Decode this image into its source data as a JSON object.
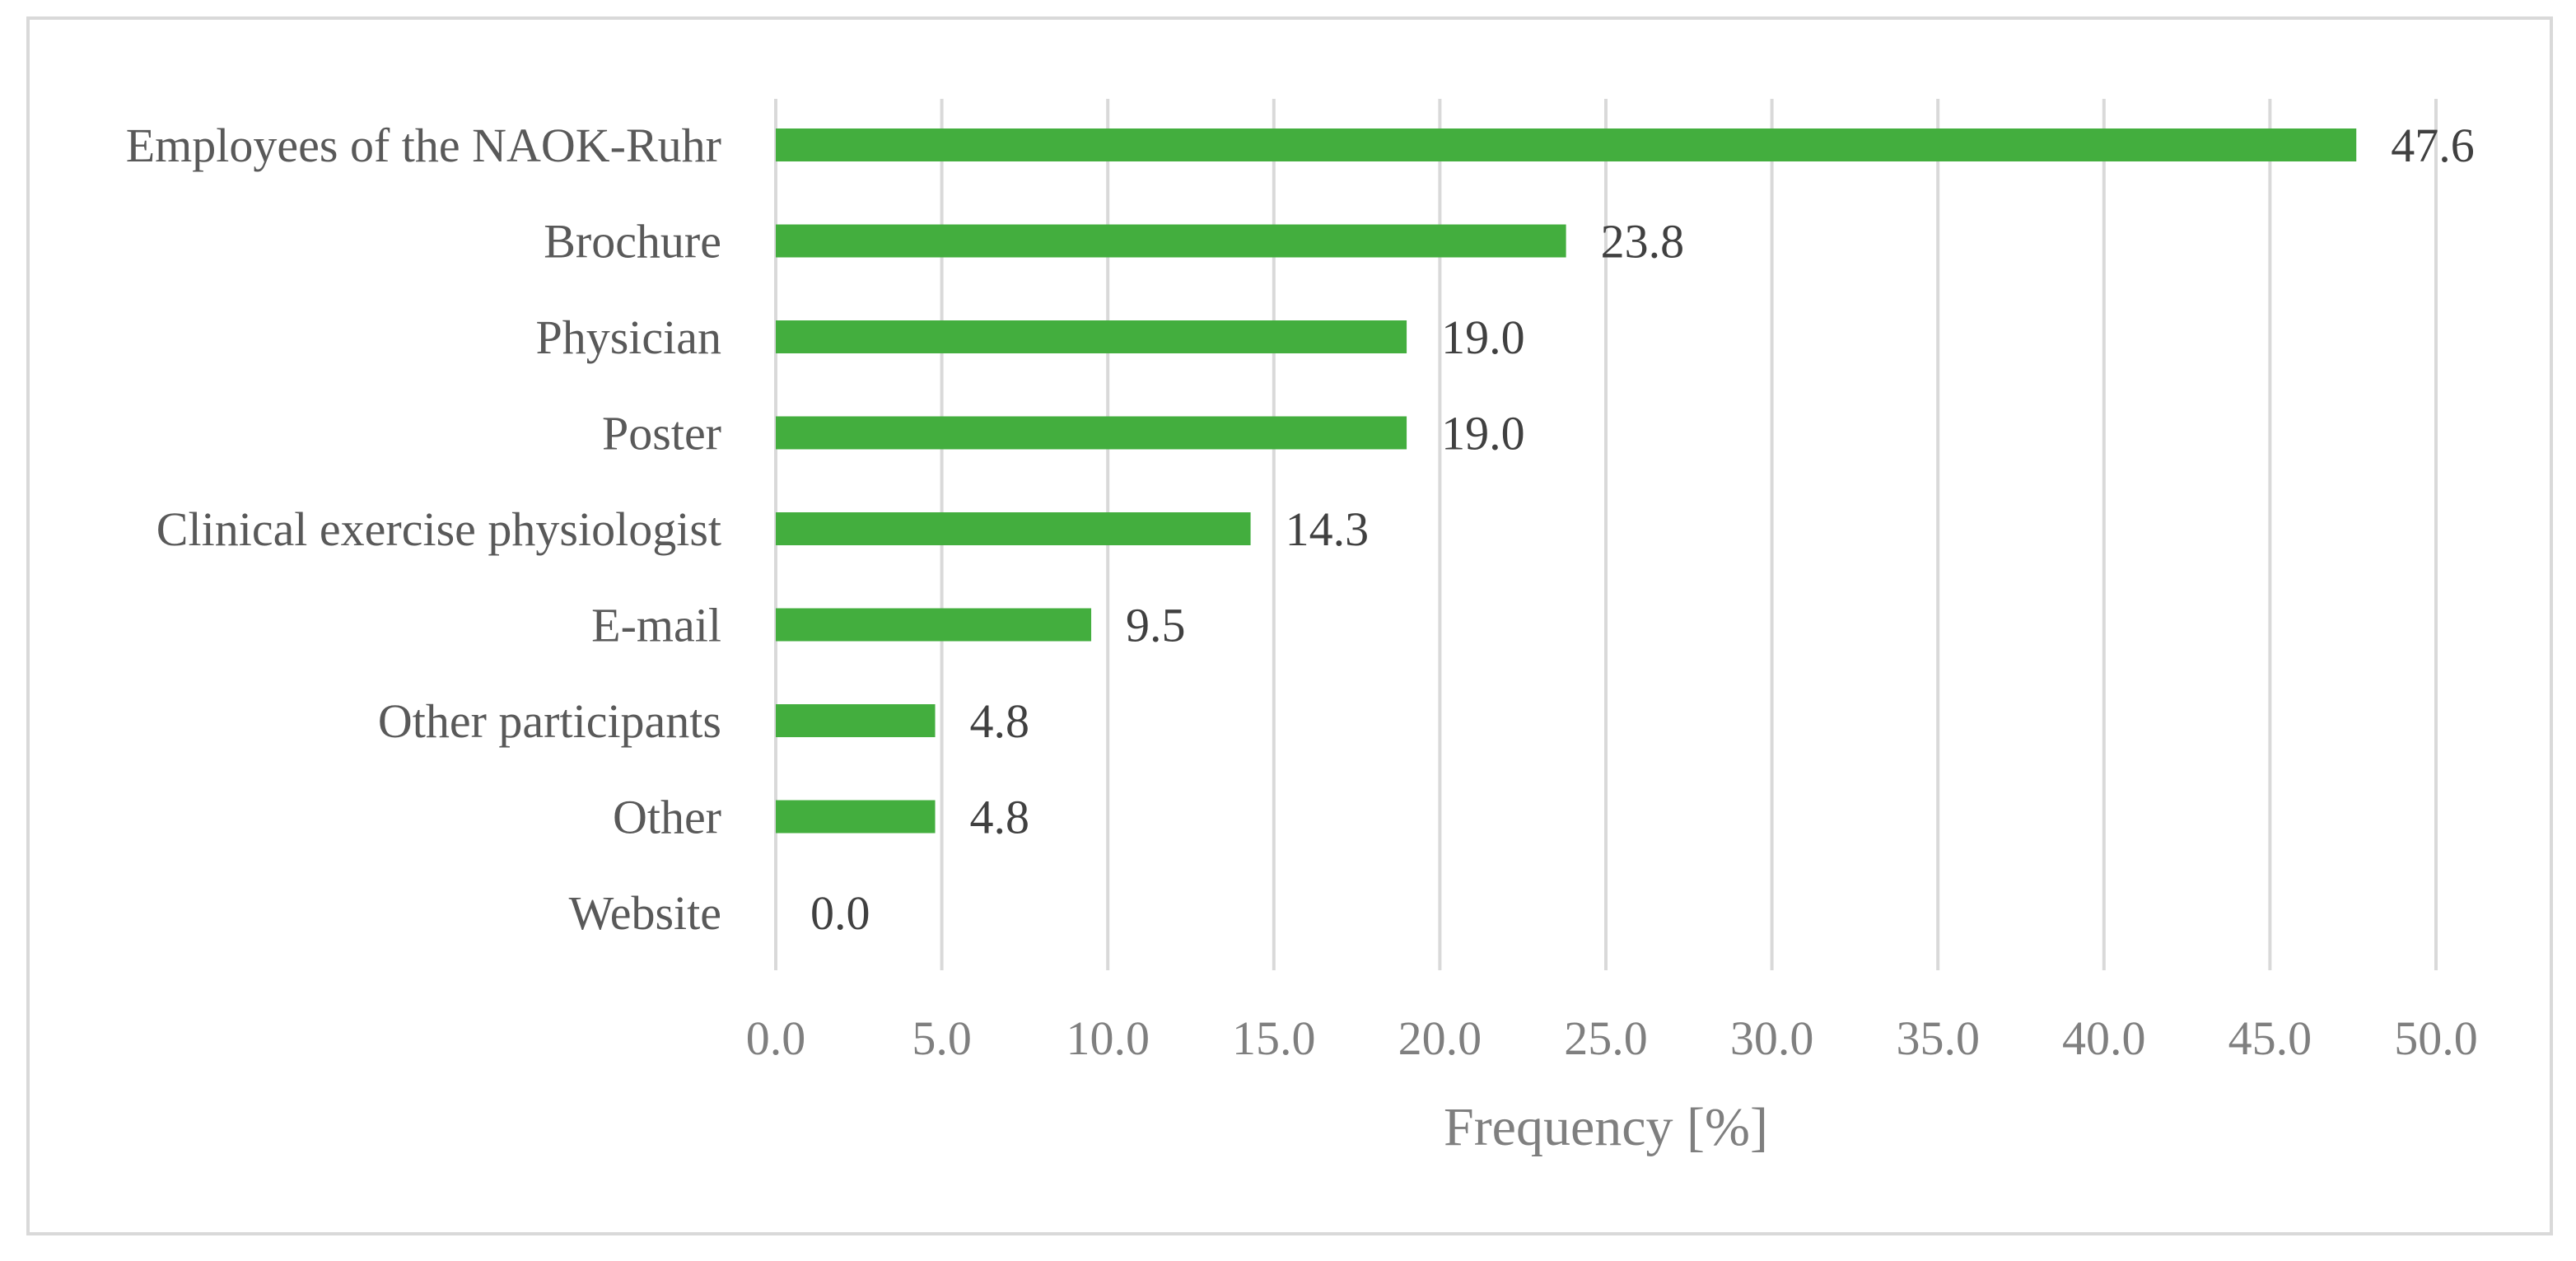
{
  "chart_data": {
    "type": "bar",
    "orientation": "horizontal",
    "categories": [
      "Employees of the NAOK-Ruhr",
      "Brochure",
      "Physician",
      "Poster",
      "Clinical exercise physiologist",
      "E-mail",
      "Other participants",
      "Other",
      "Website"
    ],
    "values": [
      47.6,
      23.8,
      19.0,
      19.0,
      14.3,
      9.5,
      4.8,
      4.8,
      0.0
    ],
    "value_labels": [
      "47.6",
      "23.8",
      "19.0",
      "19.0",
      "14.3",
      "9.5",
      "4.8",
      "4.8",
      "0.0"
    ],
    "xlabel": "Frequency [%]",
    "ylabel": "",
    "title": "",
    "xlim": [
      0,
      50
    ],
    "xticks": [
      "0.0",
      "5.0",
      "10.0",
      "15.0",
      "20.0",
      "25.0",
      "30.0",
      "35.0",
      "40.0",
      "45.0",
      "50.0"
    ],
    "grid": "vertical",
    "legend": "none",
    "colors": {
      "bar": "#43ae3e",
      "grid": "#d9d9d9",
      "frame": "#d9d9d9",
      "category_text": "#595959",
      "tick_text": "#7f7f7f",
      "value_text": "#404040"
    }
  }
}
